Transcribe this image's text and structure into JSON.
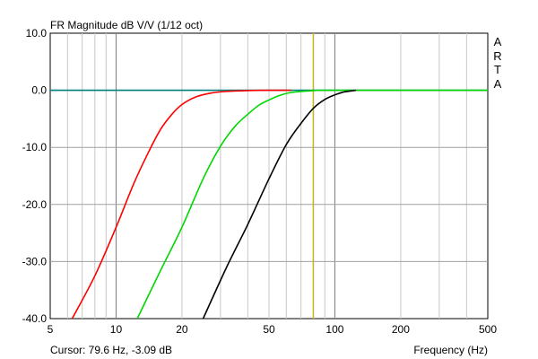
{
  "chart_data": {
    "type": "line",
    "title": "FR Magnitude dB V/V (1/12 oct)",
    "xlabel": "Frequency (Hz)",
    "ylabel": "",
    "xscale": "log",
    "xlim": [
      5,
      500
    ],
    "ylim": [
      -40,
      10
    ],
    "grid": true,
    "x_ticks": [
      5,
      10,
      20,
      50,
      100,
      200,
      500
    ],
    "x_tick_labels": [
      "5",
      "10",
      "20",
      "50",
      "100",
      "200",
      "500"
    ],
    "y_ticks": [
      10,
      0,
      -10,
      -20,
      -30,
      -40
    ],
    "y_tick_labels": [
      "10.0",
      "0.0",
      "-10.0",
      "-20.0",
      "-30.0",
      "-40.0"
    ],
    "series": [
      {
        "color": "#007f7f",
        "x": [
          5,
          500
        ],
        "values": [
          0,
          0
        ]
      },
      {
        "color": "#ff0000",
        "x": [
          6.3,
          8,
          10,
          12,
          14,
          16,
          18,
          20,
          23,
          27,
          32,
          40,
          50,
          63
        ],
        "values": [
          -40,
          -32.5,
          -24,
          -16.5,
          -11,
          -6.8,
          -4.2,
          -2.5,
          -1.2,
          -0.5,
          -0.2,
          -0.05,
          0,
          0
        ]
      },
      {
        "color": "#00d800",
        "x": [
          12.5,
          16,
          20,
          25,
          30,
          35,
          40,
          45,
          50,
          55,
          63,
          80,
          100,
          500
        ],
        "values": [
          -40,
          -31.5,
          -24,
          -15.5,
          -9.8,
          -6.3,
          -4.2,
          -2.6,
          -1.7,
          -1,
          -0.4,
          -0.05,
          0,
          0
        ]
      },
      {
        "color": "#000000",
        "x": [
          25,
          32,
          40,
          50,
          60,
          70,
          80,
          90,
          100,
          110,
          125
        ],
        "values": [
          -40,
          -31,
          -23.5,
          -15.5,
          -9.5,
          -5.8,
          -3.1,
          -1.6,
          -0.8,
          -0.3,
          0
        ]
      }
    ],
    "cursor_line": {
      "x": 79.6,
      "color": "#c8b400"
    },
    "cursor_readout": "Cursor: 79.6 Hz, -3.09 dB",
    "brand": [
      "A",
      "R",
      "T",
      "A"
    ]
  }
}
